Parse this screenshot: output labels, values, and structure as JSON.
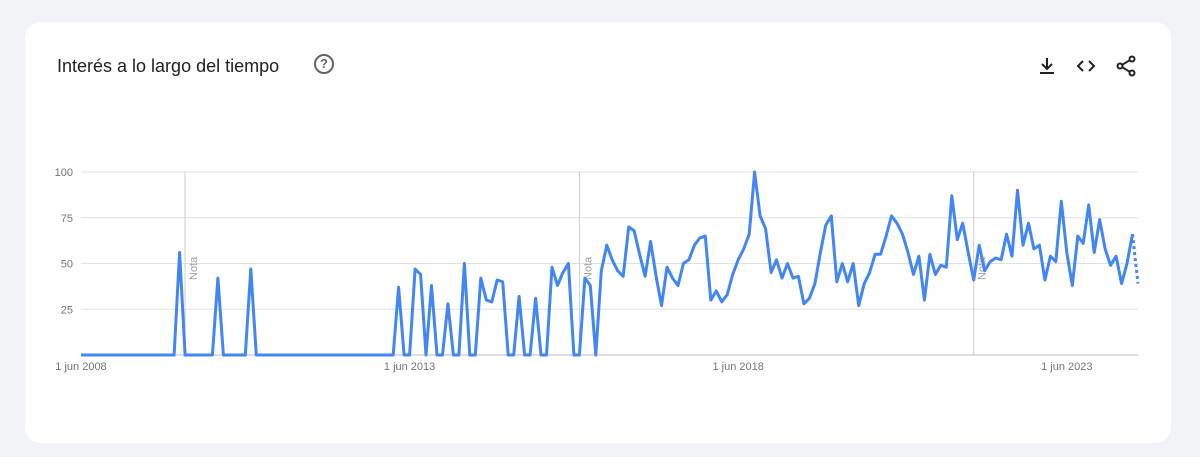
{
  "header": {
    "title": "Interés a lo largo del tiempo",
    "help_icon": "question-circle-icon",
    "actions": [
      {
        "name": "download-icon"
      },
      {
        "name": "embed-code-icon"
      },
      {
        "name": "share-icon"
      }
    ]
  },
  "colors": {
    "line": "#4285f4",
    "grid": "#e0e0e0",
    "marker": "#cccccc"
  },
  "chart_data": {
    "type": "line",
    "title": "Interés a lo largo del tiempo",
    "x_tick_labels": [
      "1 jun 2008",
      "1 jun 2013",
      "1 jun 2018",
      "1 jun 2023"
    ],
    "y_tick_labels": [
      "100",
      "75",
      "50",
      "25"
    ],
    "ylim": [
      0,
      100
    ],
    "grid": true,
    "notes": [
      {
        "label": "Nota",
        "date": "2010-01"
      },
      {
        "label": "Nota",
        "date": "2016-01"
      },
      {
        "label": "Nota",
        "date": "2022-01"
      }
    ],
    "start": "2008-06",
    "partial_last_points": 1,
    "values": [
      0,
      0,
      0,
      0,
      0,
      0,
      0,
      0,
      0,
      0,
      0,
      0,
      0,
      0,
      0,
      0,
      0,
      0,
      56,
      0,
      0,
      0,
      0,
      0,
      0,
      42,
      0,
      0,
      0,
      0,
      0,
      47,
      0,
      0,
      0,
      0,
      0,
      0,
      0,
      0,
      0,
      0,
      0,
      0,
      0,
      0,
      0,
      0,
      0,
      0,
      0,
      0,
      0,
      0,
      0,
      0,
      0,
      0,
      37,
      0,
      0,
      47,
      44,
      0,
      38,
      0,
      0,
      28,
      0,
      0,
      50,
      0,
      0,
      42,
      30,
      29,
      41,
      40,
      0,
      0,
      32,
      0,
      0,
      31,
      0,
      0,
      48,
      38,
      45,
      50,
      0,
      0,
      42,
      38,
      0,
      46,
      60,
      52,
      46,
      43,
      70,
      68,
      55,
      43,
      62,
      43,
      27,
      48,
      42,
      38,
      50,
      52,
      60,
      64,
      65,
      30,
      35,
      29,
      33,
      44,
      52,
      58,
      66,
      100,
      76,
      69,
      45,
      52,
      42,
      50,
      42,
      43,
      28,
      31,
      39,
      56,
      71,
      76,
      40,
      50,
      40,
      50,
      27,
      39,
      45,
      55,
      55,
      65,
      76,
      72,
      66,
      56,
      44,
      54,
      30,
      55,
      44,
      49,
      48,
      87,
      63,
      72,
      56,
      41,
      60,
      46,
      51,
      53,
      52,
      66,
      54,
      90,
      60,
      72,
      58,
      60,
      41,
      54,
      51,
      84,
      56,
      38,
      65,
      61,
      82,
      56,
      74,
      58,
      49,
      54,
      39,
      50,
      66,
      39
    ]
  }
}
